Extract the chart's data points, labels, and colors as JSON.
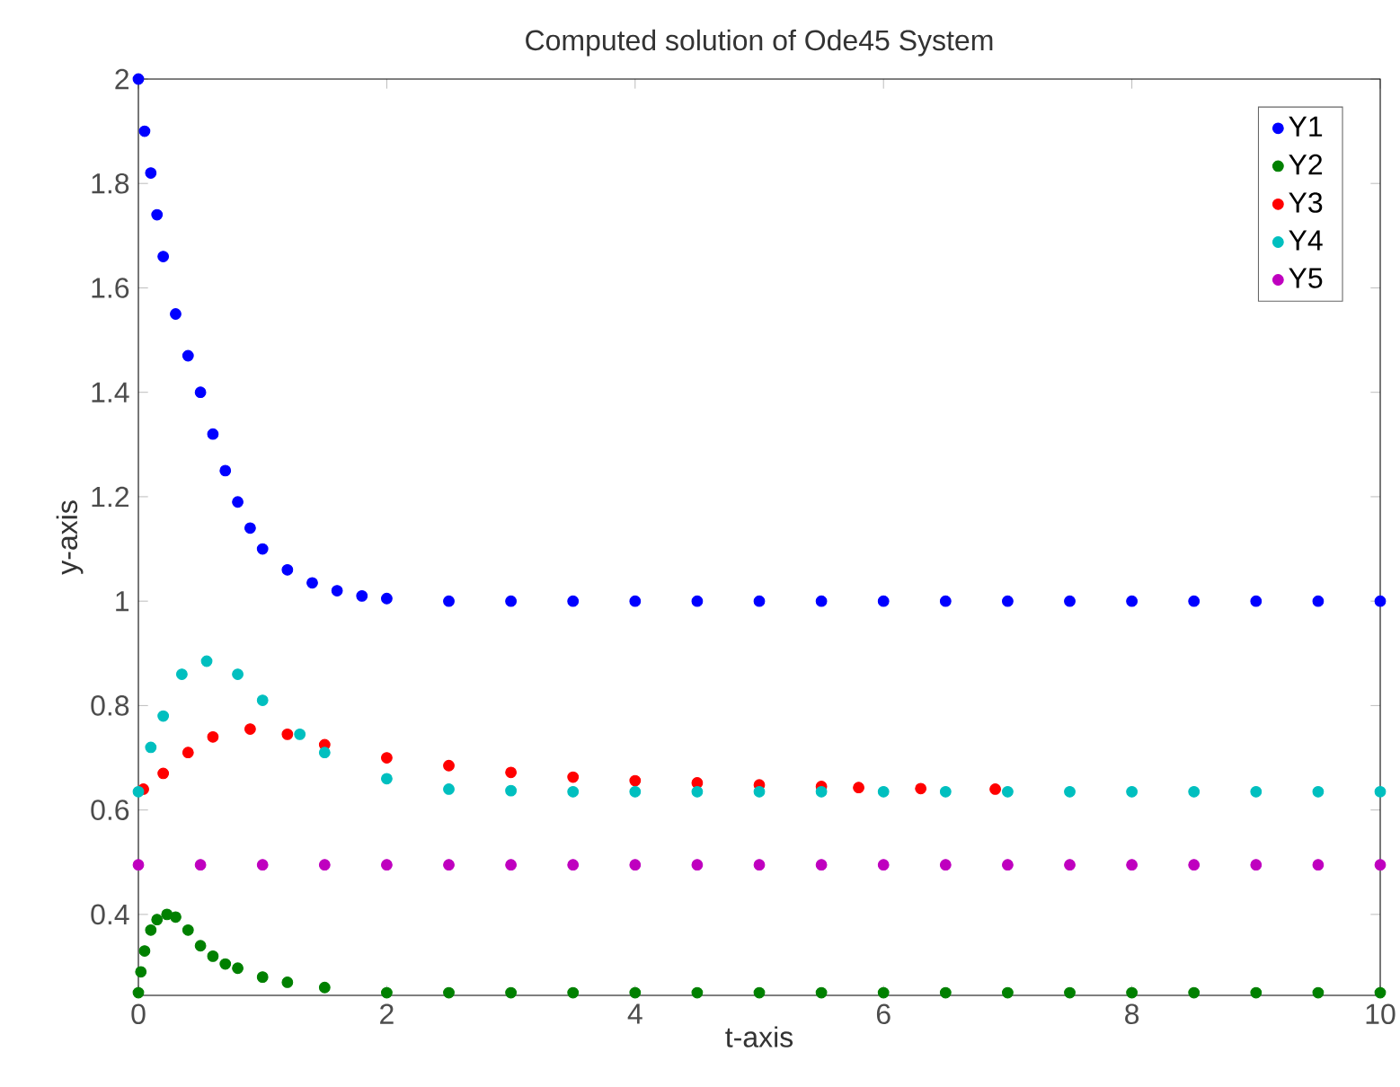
{
  "chart_data": {
    "type": "scatter",
    "title": "Computed solution of Ode45 System",
    "xlabel": "t-axis",
    "ylabel": "y-axis",
    "xlim": [
      0,
      10
    ],
    "ylim": [
      0.245,
      2
    ],
    "xticks": [
      0,
      2,
      4,
      6,
      8,
      10
    ],
    "yticks": [
      0.4,
      0.6,
      0.8,
      1,
      1.2,
      1.4,
      1.6,
      1.8,
      2
    ],
    "grid": false,
    "legend": "top right",
    "marker": "circle",
    "series": [
      {
        "name": "Y1",
        "color": "#0000ff",
        "x": [
          0,
          0.05,
          0.1,
          0.15,
          0.2,
          0.3,
          0.4,
          0.5,
          0.6,
          0.7,
          0.8,
          0.9,
          1.0,
          1.2,
          1.4,
          1.6,
          1.8,
          2,
          2.5,
          3,
          3.5,
          4,
          4.5,
          5,
          5.5,
          6,
          6.5,
          7,
          7.5,
          8,
          8.5,
          9,
          9.5,
          10
        ],
        "values": [
          2,
          1.9,
          1.82,
          1.74,
          1.66,
          1.55,
          1.47,
          1.4,
          1.32,
          1.25,
          1.19,
          1.14,
          1.1,
          1.06,
          1.035,
          1.02,
          1.01,
          1.005,
          1,
          1,
          1,
          1,
          1,
          1,
          1,
          1,
          1,
          1,
          1,
          1,
          1,
          1,
          1,
          1
        ]
      },
      {
        "name": "Y2",
        "color": "#008000",
        "x": [
          0,
          0.02,
          0.05,
          0.1,
          0.15,
          0.23,
          0.3,
          0.4,
          0.5,
          0.6,
          0.7,
          0.8,
          1,
          1.2,
          1.5,
          2,
          2.5,
          3,
          3.5,
          4,
          4.5,
          5,
          5.5,
          6,
          6.5,
          7,
          7.5,
          8,
          8.5,
          9,
          9.5,
          10
        ],
        "values": [
          0.25,
          0.29,
          0.33,
          0.37,
          0.39,
          0.4,
          0.395,
          0.37,
          0.34,
          0.32,
          0.305,
          0.297,
          0.28,
          0.27,
          0.26,
          0.25,
          0.25,
          0.25,
          0.25,
          0.25,
          0.25,
          0.25,
          0.25,
          0.25,
          0.25,
          0.25,
          0.25,
          0.25,
          0.25,
          0.25,
          0.25,
          0.25
        ]
      },
      {
        "name": "Y3",
        "color": "#ff0000",
        "x": [
          0.04,
          0.2,
          0.4,
          0.6,
          0.9,
          1.2,
          1.5,
          2,
          2.5,
          3,
          3.5,
          4,
          4.5,
          5,
          5.5,
          5.8,
          6.3,
          6.9
        ],
        "values": [
          0.64,
          0.67,
          0.71,
          0.74,
          0.755,
          0.745,
          0.725,
          0.7,
          0.685,
          0.672,
          0.663,
          0.656,
          0.652,
          0.648,
          0.645,
          0.643,
          0.641,
          0.64
        ]
      },
      {
        "name": "Y4",
        "color": "#00bfbf",
        "x": [
          0,
          0.1,
          0.2,
          0.35,
          0.55,
          0.8,
          1.0,
          1.3,
          1.5,
          2,
          2.5,
          3,
          3.5,
          4,
          4.5,
          5,
          5.5,
          6,
          6.5,
          7,
          7.5,
          8,
          8.5,
          9,
          9.5,
          10
        ],
        "values": [
          0.635,
          0.72,
          0.78,
          0.86,
          0.885,
          0.86,
          0.81,
          0.745,
          0.71,
          0.66,
          0.64,
          0.637,
          0.635,
          0.635,
          0.635,
          0.635,
          0.635,
          0.635,
          0.635,
          0.635,
          0.635,
          0.635,
          0.635,
          0.635,
          0.635,
          0.635
        ]
      },
      {
        "name": "Y5",
        "color": "#bf00bf",
        "x": [
          0,
          0.5,
          1,
          1.5,
          2,
          2.5,
          3,
          3.5,
          4,
          4.5,
          5,
          5.5,
          6,
          6.5,
          7,
          7.5,
          8,
          8.5,
          9,
          9.5,
          10
        ],
        "values": [
          0.495,
          0.495,
          0.495,
          0.495,
          0.495,
          0.495,
          0.495,
          0.495,
          0.495,
          0.495,
          0.495,
          0.495,
          0.495,
          0.495,
          0.495,
          0.495,
          0.495,
          0.495,
          0.495,
          0.495,
          0.495
        ]
      }
    ]
  }
}
